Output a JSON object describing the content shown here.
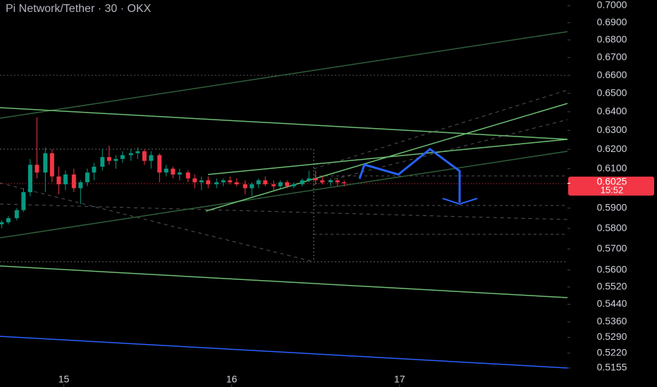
{
  "chart_data": {
    "type": "candlestick",
    "title": "Pi Network/Tether · 30 · OKX",
    "log_scale": true,
    "xlim": [
      14.62,
      18.0
    ],
    "xticks": [
      15,
      16,
      17
    ],
    "ylim": [
      0.5155,
      0.7
    ],
    "yticks": [
      {
        "value": 0.7,
        "label": "0.7000"
      },
      {
        "value": 0.69,
        "label": "0.6900"
      },
      {
        "value": 0.68,
        "label": "0.6800"
      },
      {
        "value": 0.67,
        "label": "0.6700"
      },
      {
        "value": 0.66,
        "label": "0.6600"
      },
      {
        "value": 0.65,
        "label": "0.6500"
      },
      {
        "value": 0.64,
        "label": "0.6400"
      },
      {
        "value": 0.63,
        "label": "0.6300"
      },
      {
        "value": 0.62,
        "label": "0.6200"
      },
      {
        "value": 0.61,
        "label": "0.6100"
      },
      {
        "value": 0.59,
        "label": "0.5900"
      },
      {
        "value": 0.58,
        "label": "0.5800"
      },
      {
        "value": 0.57,
        "label": "0.5700"
      },
      {
        "value": 0.56,
        "label": "0.5600"
      },
      {
        "value": 0.552,
        "label": "0.5520"
      },
      {
        "value": 0.544,
        "label": "0.5440"
      },
      {
        "value": 0.536,
        "label": "0.5360"
      },
      {
        "value": 0.529,
        "label": "0.5290"
      },
      {
        "value": 0.522,
        "label": "0.5220"
      },
      {
        "value": 0.5155,
        "label": "0.5155"
      }
    ],
    "up_color": "#089981",
    "down_color": "#f23645",
    "last_price": 0.6025,
    "countdown": "15:52",
    "x": [
      14.63,
      14.67,
      14.72,
      14.76,
      14.8,
      14.84,
      14.89,
      14.93,
      14.97,
      15.01,
      15.06,
      15.1,
      15.14,
      15.18,
      15.23,
      15.27,
      15.31,
      15.35,
      15.4,
      15.44,
      15.48,
      15.52,
      15.57,
      15.61,
      15.65,
      15.69,
      15.74,
      15.78,
      15.82,
      15.86,
      15.91,
      15.95,
      15.99,
      16.03,
      16.08,
      16.12,
      16.16,
      16.2,
      16.25,
      16.29,
      16.33,
      16.37,
      16.42,
      16.46,
      16.5,
      16.54,
      16.59,
      16.63,
      16.67
    ],
    "open": [
      0.582,
      0.583,
      0.585,
      0.589,
      0.598,
      0.612,
      0.608,
      0.618,
      0.606,
      0.602,
      0.607,
      0.6,
      0.603,
      0.608,
      0.611,
      0.616,
      0.614,
      0.615,
      0.617,
      0.618,
      0.619,
      0.614,
      0.617,
      0.608,
      0.61,
      0.607,
      0.608,
      0.605,
      0.603,
      0.604,
      0.602,
      0.603,
      0.604,
      0.603,
      0.602,
      0.6,
      0.602,
      0.604,
      0.602,
      0.601,
      0.603,
      0.601,
      0.602,
      0.604,
      0.605,
      0.604,
      0.603,
      0.604,
      0.603
    ],
    "high": [
      0.584,
      0.586,
      0.59,
      0.6,
      0.615,
      0.637,
      0.621,
      0.62,
      0.611,
      0.609,
      0.61,
      0.604,
      0.61,
      0.613,
      0.62,
      0.622,
      0.617,
      0.619,
      0.62,
      0.621,
      0.62,
      0.619,
      0.618,
      0.612,
      0.611,
      0.61,
      0.609,
      0.607,
      0.606,
      0.606,
      0.605,
      0.605,
      0.606,
      0.605,
      0.604,
      0.603,
      0.605,
      0.606,
      0.604,
      0.604,
      0.604,
      0.603,
      0.605,
      0.609,
      0.609,
      0.606,
      0.605,
      0.605,
      0.604
    ],
    "low": [
      0.58,
      0.582,
      0.584,
      0.588,
      0.596,
      0.605,
      0.598,
      0.603,
      0.597,
      0.599,
      0.598,
      0.592,
      0.601,
      0.604,
      0.609,
      0.612,
      0.61,
      0.613,
      0.614,
      0.615,
      0.612,
      0.61,
      0.603,
      0.606,
      0.605,
      0.604,
      0.603,
      0.6,
      0.599,
      0.6,
      0.6,
      0.601,
      0.602,
      0.601,
      0.597,
      0.596,
      0.6,
      0.601,
      0.599,
      0.6,
      0.6,
      0.6,
      0.601,
      0.603,
      0.602,
      0.602,
      0.601,
      0.601,
      0.601
    ],
    "close": [
      0.583,
      0.585,
      0.589,
      0.598,
      0.612,
      0.608,
      0.618,
      0.606,
      0.602,
      0.607,
      0.6,
      0.603,
      0.608,
      0.611,
      0.616,
      0.614,
      0.615,
      0.617,
      0.618,
      0.619,
      0.614,
      0.617,
      0.608,
      0.61,
      0.607,
      0.608,
      0.605,
      0.603,
      0.604,
      0.602,
      0.603,
      0.604,
      0.603,
      0.602,
      0.6,
      0.602,
      0.604,
      0.602,
      0.601,
      0.603,
      0.601,
      0.602,
      0.604,
      0.605,
      0.604,
      0.603,
      0.604,
      0.603,
      0.6025
    ]
  }
}
